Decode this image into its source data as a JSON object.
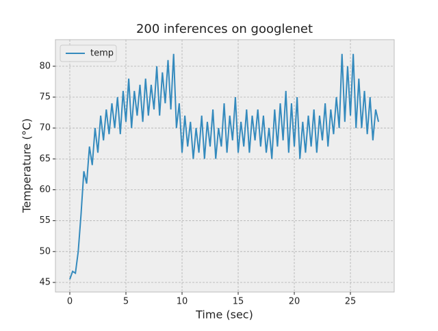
{
  "chart_data": {
    "type": "line",
    "title": "200 inferences on googlenet",
    "x_label": "Time (sec)",
    "y_label": "Temperature (°C)",
    "x": [
      0,
      0.25,
      0.5,
      0.75,
      1,
      1.25,
      1.5,
      1.75,
      2,
      2.25,
      2.5,
      2.75,
      3,
      3.25,
      3.5,
      3.75,
      4,
      4.25,
      4.5,
      4.75,
      5,
      5.25,
      5.5,
      5.75,
      6,
      6.25,
      6.5,
      6.75,
      7,
      7.25,
      7.5,
      7.75,
      8,
      8.25,
      8.5,
      8.75,
      9,
      9.25,
      9.5,
      9.75,
      10,
      10.25,
      10.5,
      10.75,
      11,
      11.25,
      11.5,
      11.75,
      12,
      12.25,
      12.5,
      12.75,
      13,
      13.25,
      13.5,
      13.75,
      14,
      14.25,
      14.5,
      14.75,
      15,
      15.25,
      15.5,
      15.75,
      16,
      16.25,
      16.5,
      16.75,
      17,
      17.25,
      17.5,
      17.75,
      18,
      18.25,
      18.5,
      18.75,
      19,
      19.25,
      19.5,
      19.75,
      20,
      20.25,
      20.5,
      20.75,
      21,
      21.25,
      21.5,
      21.75,
      22,
      22.25,
      22.5,
      22.75,
      23,
      23.25,
      23.5,
      23.75,
      24,
      24.25,
      24.5,
      24.75,
      25,
      25.25,
      25.5,
      25.75,
      26,
      26.25,
      26.5,
      26.75,
      27,
      27.25,
      27.5
    ],
    "series": [
      {
        "name": "temp",
        "color": "#348ABD",
        "values": [
          45.5,
          46.8,
          46.5,
          50,
          56,
          63,
          61,
          67,
          64,
          70,
          66,
          72,
          68,
          73,
          69,
          74,
          70,
          75,
          69,
          76,
          71,
          78,
          70,
          76,
          72,
          77,
          71,
          78,
          72,
          77,
          73,
          80,
          72,
          79,
          74,
          81,
          73,
          82,
          70,
          74,
          66,
          72,
          67,
          71,
          65,
          70,
          66,
          72,
          65,
          71,
          67,
          73,
          65,
          70,
          67,
          74,
          66,
          72,
          68,
          75,
          66,
          71,
          67,
          73,
          66,
          72,
          68,
          73,
          67,
          72,
          66,
          70,
          65,
          73,
          67,
          74,
          68,
          76,
          66,
          74,
          67,
          75,
          65,
          71,
          66,
          72,
          67,
          73,
          66,
          72,
          68,
          74,
          67,
          73,
          69,
          75,
          70,
          82,
          71,
          80,
          72,
          82,
          70,
          78,
          70,
          76,
          69,
          75,
          68,
          73,
          71
        ]
      }
    ],
    "xlim": [
      -1.28,
      28.9
    ],
    "ylim": [
      43.45,
      84.3
    ],
    "xticks": [
      0,
      5,
      10,
      15,
      20,
      25
    ],
    "yticks": [
      45,
      50,
      55,
      60,
      65,
      70,
      75,
      80
    ],
    "grid": true,
    "legend": "upper left"
  }
}
